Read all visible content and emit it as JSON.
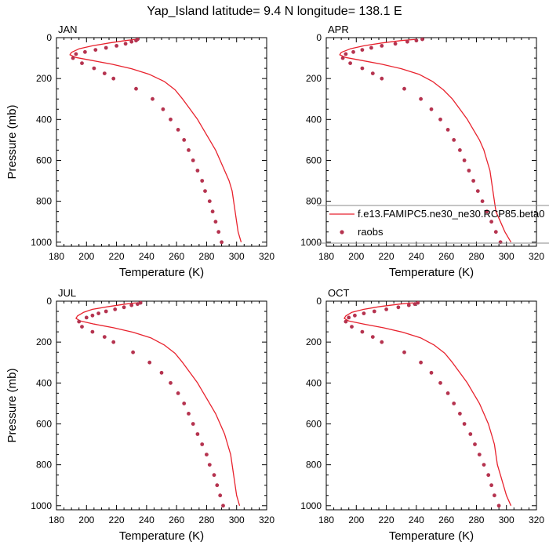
{
  "figure": {
    "title": "Yap_Island  latitude= 9.4 N longitude= 138.1 E"
  },
  "colors": {
    "model": "#e8222d",
    "obs": "#b5334f",
    "axis": "#000000"
  },
  "legend": {
    "model_label": "f.e13.FAMIPC5.ne30_ne30.RCP85.beta0",
    "obs_label": "raobs",
    "placement": "right side of APR panel"
  },
  "chart_data": [
    {
      "type": "line",
      "title": "JAN",
      "xlabel": "Temperature (K)",
      "ylabel": "Pressure (mb)",
      "xlim": [
        180,
        320
      ],
      "ylim": [
        1020,
        0
      ],
      "xticks": [
        180,
        200,
        220,
        240,
        260,
        280,
        300,
        320
      ],
      "yticks": [
        0,
        200,
        400,
        600,
        800,
        1000
      ],
      "grid": false,
      "series": [
        {
          "name": "f.e13.FAMIPC5.ne30_ne30.RCP85.beta0",
          "style": "line",
          "points": [
            [
              233,
              8
            ],
            [
              226,
              14
            ],
            [
              215,
              26
            ],
            [
              204,
              40
            ],
            [
              195,
              55
            ],
            [
              190,
              72
            ],
            [
              189,
              84
            ],
            [
              193,
              97
            ],
            [
              204,
              112
            ],
            [
              217,
              130
            ],
            [
              230,
              152
            ],
            [
              242,
              180
            ],
            [
              252,
              215
            ],
            [
              259,
              255
            ],
            [
              264,
              300
            ],
            [
              269,
              350
            ],
            [
              274,
              400
            ],
            [
              278,
              450
            ],
            [
              282,
              500
            ],
            [
              286,
              550
            ],
            [
              289,
              600
            ],
            [
              292,
              650
            ],
            [
              295,
              700
            ],
            [
              297,
              750
            ],
            [
              298,
              800
            ],
            [
              299,
              850
            ],
            [
              300,
              900
            ],
            [
              301,
              950
            ],
            [
              303,
              1000
            ]
          ]
        },
        {
          "name": "raobs",
          "style": "markers",
          "points": [
            [
              234,
              8
            ],
            [
              233,
              14
            ],
            [
              230,
              20
            ],
            [
              226,
              30
            ],
            [
              220,
              40
            ],
            [
              213,
              50
            ],
            [
              206,
              60
            ],
            [
              199,
              70
            ],
            [
              193,
              80
            ],
            [
              191,
              100
            ],
            [
              197,
              125
            ],
            [
              205,
              150
            ],
            [
              212,
              175
            ],
            [
              218,
              200
            ],
            [
              233,
              250
            ],
            [
              244,
              300
            ],
            [
              251,
              350
            ],
            [
              256,
              400
            ],
            [
              261,
              450
            ],
            [
              265,
              500
            ],
            [
              268,
              550
            ],
            [
              271,
              600
            ],
            [
              274,
              650
            ],
            [
              277,
              700
            ],
            [
              279,
              750
            ],
            [
              282,
              800
            ],
            [
              284,
              850
            ],
            [
              286,
              900
            ],
            [
              288,
              950
            ],
            [
              290,
              1000
            ]
          ]
        }
      ]
    },
    {
      "type": "line",
      "title": "APR",
      "xlabel": "Temperature (K)",
      "ylabel": "",
      "xlim": [
        180,
        320
      ],
      "ylim": [
        1020,
        0
      ],
      "xticks": [
        180,
        200,
        220,
        240,
        260,
        280,
        300,
        320
      ],
      "yticks": [
        0,
        200,
        400,
        600,
        800,
        1000
      ],
      "grid": false,
      "series": [
        {
          "name": "f.e13.FAMIPC5.ne30_ne30.RCP85.beta0",
          "style": "line",
          "points": [
            [
              240,
              8
            ],
            [
              230,
              14
            ],
            [
              217,
              26
            ],
            [
              205,
              40
            ],
            [
              196,
              55
            ],
            [
              190,
              72
            ],
            [
              189,
              84
            ],
            [
              193,
              97
            ],
            [
              204,
              112
            ],
            [
              217,
              130
            ],
            [
              230,
              152
            ],
            [
              242,
              180
            ],
            [
              251,
              215
            ],
            [
              258,
              255
            ],
            [
              264,
              300
            ],
            [
              269,
              350
            ],
            [
              274,
              400
            ],
            [
              278,
              450
            ],
            [
              282,
              500
            ],
            [
              285,
              550
            ],
            [
              287,
              600
            ],
            [
              289,
              650
            ],
            [
              290,
              700
            ],
            [
              291,
              750
            ],
            [
              292,
              800
            ],
            [
              293,
              850
            ],
            [
              296,
              900
            ],
            [
              299,
              950
            ],
            [
              303,
              1000
            ]
          ]
        },
        {
          "name": "raobs",
          "style": "markers",
          "points": [
            [
              244,
              8
            ],
            [
              240,
              14
            ],
            [
              234,
              20
            ],
            [
              226,
              30
            ],
            [
              217,
              40
            ],
            [
              210,
              50
            ],
            [
              204,
              60
            ],
            [
              198,
              70
            ],
            [
              193,
              80
            ],
            [
              191,
              100
            ],
            [
              196,
              125
            ],
            [
              204,
              150
            ],
            [
              211,
              175
            ],
            [
              217,
              200
            ],
            [
              232,
              250
            ],
            [
              243,
              300
            ],
            [
              250,
              350
            ],
            [
              256,
              400
            ],
            [
              261,
              450
            ],
            [
              265,
              500
            ],
            [
              269,
              550
            ],
            [
              272,
              600
            ],
            [
              275,
              650
            ],
            [
              278,
              700
            ],
            [
              281,
              750
            ],
            [
              284,
              800
            ],
            [
              287,
              850
            ],
            [
              290,
              900
            ],
            [
              293,
              950
            ],
            [
              296,
              1000
            ]
          ]
        }
      ]
    },
    {
      "type": "line",
      "title": "JUL",
      "xlabel": "Temperature (K)",
      "ylabel": "Pressure (mb)",
      "xlim": [
        180,
        320
      ],
      "ylim": [
        1020,
        0
      ],
      "xticks": [
        180,
        200,
        220,
        240,
        260,
        280,
        300,
        320
      ],
      "yticks": [
        0,
        200,
        400,
        600,
        800,
        1000
      ],
      "grid": false,
      "series": [
        {
          "name": "f.e13.FAMIPC5.ne30_ne30.RCP85.beta0",
          "style": "line",
          "points": [
            [
              233,
              8
            ],
            [
              226,
              14
            ],
            [
              215,
              26
            ],
            [
              204,
              40
            ],
            [
              198,
              55
            ],
            [
              194,
              72
            ],
            [
              193,
              84
            ],
            [
              196,
              97
            ],
            [
              205,
              112
            ],
            [
              218,
              130
            ],
            [
              231,
              152
            ],
            [
              243,
              180
            ],
            [
              252,
              215
            ],
            [
              259,
              255
            ],
            [
              264,
              300
            ],
            [
              269,
              350
            ],
            [
              274,
              400
            ],
            [
              278,
              450
            ],
            [
              282,
              500
            ],
            [
              286,
              550
            ],
            [
              289,
              600
            ],
            [
              292,
              650
            ],
            [
              294,
              700
            ],
            [
              296,
              750
            ],
            [
              297,
              800
            ],
            [
              298,
              850
            ],
            [
              299,
              900
            ],
            [
              300,
              950
            ],
            [
              302,
              1000
            ]
          ]
        },
        {
          "name": "raobs",
          "style": "markers",
          "points": [
            [
              236,
              8
            ],
            [
              234,
              14
            ],
            [
              230,
              20
            ],
            [
              225,
              30
            ],
            [
              219,
              40
            ],
            [
              213,
              50
            ],
            [
              208,
              60
            ],
            [
              204,
              70
            ],
            [
              200,
              80
            ],
            [
              195,
              100
            ],
            [
              197,
              125
            ],
            [
              204,
              150
            ],
            [
              212,
              175
            ],
            [
              218,
              200
            ],
            [
              231,
              250
            ],
            [
              242,
              300
            ],
            [
              250,
              350
            ],
            [
              256,
              400
            ],
            [
              261,
              450
            ],
            [
              265,
              500
            ],
            [
              268,
              550
            ],
            [
              271,
              600
            ],
            [
              274,
              650
            ],
            [
              277,
              700
            ],
            [
              280,
              750
            ],
            [
              282,
              800
            ],
            [
              285,
              850
            ],
            [
              287,
              900
            ],
            [
              289,
              950
            ],
            [
              291,
              1000
            ]
          ]
        }
      ]
    },
    {
      "type": "line",
      "title": "OCT",
      "xlabel": "Temperature (K)",
      "ylabel": "",
      "xlim": [
        180,
        320
      ],
      "ylim": [
        1020,
        0
      ],
      "xticks": [
        180,
        200,
        220,
        240,
        260,
        280,
        300,
        320
      ],
      "yticks": [
        0,
        200,
        400,
        600,
        800,
        1000
      ],
      "grid": false,
      "series": [
        {
          "name": "f.e13.FAMIPC5.ne30_ne30.RCP85.beta0",
          "style": "line",
          "points": [
            [
              238,
              8
            ],
            [
              229,
              14
            ],
            [
              216,
              26
            ],
            [
              205,
              40
            ],
            [
              197,
              55
            ],
            [
              193,
              72
            ],
            [
              192,
              84
            ],
            [
              195,
              97
            ],
            [
              205,
              112
            ],
            [
              218,
              130
            ],
            [
              231,
              152
            ],
            [
              243,
              180
            ],
            [
              252,
              215
            ],
            [
              259,
              255
            ],
            [
              264,
              300
            ],
            [
              269,
              350
            ],
            [
              274,
              400
            ],
            [
              278,
              450
            ],
            [
              282,
              500
            ],
            [
              285,
              550
            ],
            [
              288,
              600
            ],
            [
              290,
              650
            ],
            [
              292,
              700
            ],
            [
              293,
              750
            ],
            [
              294,
              800
            ],
            [
              296,
              850
            ],
            [
              298,
              900
            ],
            [
              300,
              950
            ],
            [
              303,
              1000
            ]
          ]
        },
        {
          "name": "raobs",
          "style": "markers",
          "points": [
            [
              241,
              8
            ],
            [
              239,
              14
            ],
            [
              235,
              20
            ],
            [
              228,
              30
            ],
            [
              220,
              40
            ],
            [
              212,
              50
            ],
            [
              205,
              60
            ],
            [
              199,
              70
            ],
            [
              195,
              80
            ],
            [
              193,
              100
            ],
            [
              197,
              125
            ],
            [
              204,
              150
            ],
            [
              211,
              175
            ],
            [
              217,
              200
            ],
            [
              232,
              250
            ],
            [
              243,
              300
            ],
            [
              250,
              350
            ],
            [
              256,
              400
            ],
            [
              261,
              450
            ],
            [
              265,
              500
            ],
            [
              269,
              550
            ],
            [
              272,
              600
            ],
            [
              276,
              650
            ],
            [
              279,
              700
            ],
            [
              282,
              750
            ],
            [
              285,
              800
            ],
            [
              288,
              850
            ],
            [
              290,
              900
            ],
            [
              292,
              950
            ],
            [
              295,
              1000
            ]
          ]
        }
      ]
    }
  ]
}
